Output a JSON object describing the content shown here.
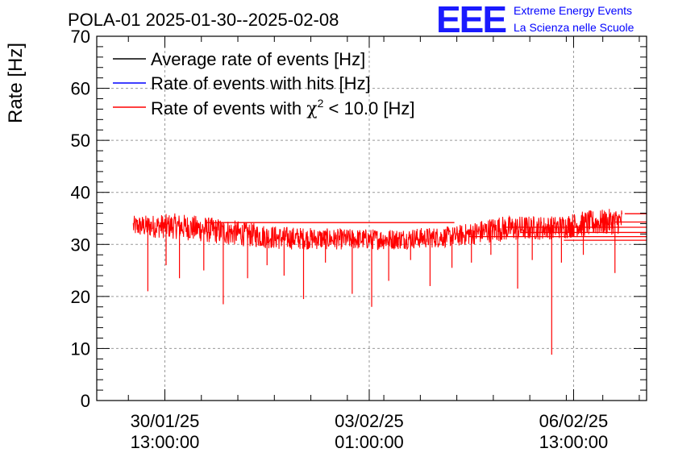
{
  "header": {
    "title": "POLA-01 2025-01-30--2025-02-08",
    "logo_text": "EEE",
    "org_line1": "Extreme Energy Events",
    "org_line2": "La Scienza nelle Scuole"
  },
  "colors": {
    "logo_blue": "#1a1aff",
    "org_text_blue": "#0000ff",
    "series_black": "#000000",
    "series_blue": "#0000ff",
    "series_red": "#ff0000",
    "grid": "#999999"
  },
  "chart_data": {
    "type": "line",
    "title": "POLA-01 2025-01-30--2025-02-08",
    "xlabel": "",
    "ylabel": "Rate [Hz]",
    "ylim": [
      0,
      70
    ],
    "yticks": [
      "0",
      "10",
      "20",
      "30",
      "40",
      "50",
      "60",
      "70"
    ],
    "xticks": [
      {
        "date": "2025-01-30T13:00:00",
        "line1": "30/01/25",
        "line2": "13:00:00"
      },
      {
        "date": "2025-02-03T01:00:00",
        "line1": "03/02/25",
        "line2": "01:00:00"
      },
      {
        "date": "2025-02-06T13:00:00",
        "line1": "06/02/25",
        "line2": "13:00:00"
      }
    ],
    "xlim": [
      "2025-01-29T09:00:00",
      "2025-02-07T19:00:00"
    ],
    "grid": true,
    "legend_position": "top-left",
    "legend": [
      {
        "label_main": "Average rate of events [Hz]",
        "color": "#000000"
      },
      {
        "label_main": "Rate of events with hits [Hz]",
        "color": "#0000ff"
      },
      {
        "label_main": "Rate of events with",
        "label_symbol": "χ",
        "label_sup": "2",
        "label_tail": "< 10.0 [Hz]",
        "color": "#ff0000"
      }
    ],
    "series": [
      {
        "name": "Rate of events with χ2 < 10.0 [Hz]",
        "color": "#ff0000",
        "band_envelope": {
          "x": [
            "2025-01-30T00:00:00",
            "2025-01-30T18:00:00",
            "2025-01-31T12:00:00",
            "2025-02-01T12:00:00",
            "2025-02-02T12:00:00",
            "2025-02-03T12:00:00",
            "2025-02-04T12:00:00",
            "2025-02-05T06:00:00",
            "2025-02-06T06:00:00",
            "2025-02-06T18:00:00",
            "2025-02-07T09:00:00"
          ],
          "low": [
            31.5,
            31.0,
            30.0,
            29.0,
            29.0,
            29.0,
            29.5,
            30.5,
            31.0,
            31.5,
            32.0
          ],
          "high": [
            35.5,
            36.0,
            35.0,
            33.5,
            33.0,
            33.0,
            33.5,
            35.5,
            35.5,
            36.5,
            37.0
          ]
        },
        "dips": [
          {
            "x": "2025-01-30T06:00:00",
            "y": 21.0
          },
          {
            "x": "2025-01-30T13:30:00",
            "y": 26.0
          },
          {
            "x": "2025-01-30T19:00:00",
            "y": 23.5
          },
          {
            "x": "2025-01-31T05:00:00",
            "y": 25.0
          },
          {
            "x": "2025-01-31T13:00:00",
            "y": 18.5
          },
          {
            "x": "2025-01-31T23:00:00",
            "y": 23.5
          },
          {
            "x": "2025-02-01T07:00:00",
            "y": 26.0
          },
          {
            "x": "2025-02-01T14:00:00",
            "y": 24.0
          },
          {
            "x": "2025-02-01T22:00:00",
            "y": 19.5
          },
          {
            "x": "2025-02-02T07:00:00",
            "y": 26.5
          },
          {
            "x": "2025-02-02T18:00:00",
            "y": 20.5
          },
          {
            "x": "2025-02-03T02:00:00",
            "y": 18.0
          },
          {
            "x": "2025-02-03T09:00:00",
            "y": 23.0
          },
          {
            "x": "2025-02-03T18:00:00",
            "y": 27.0
          },
          {
            "x": "2025-02-04T02:00:00",
            "y": 22.0
          },
          {
            "x": "2025-02-04T11:00:00",
            "y": 25.5
          },
          {
            "x": "2025-02-04T19:00:00",
            "y": 26.5
          },
          {
            "x": "2025-02-05T03:00:00",
            "y": 28.0
          },
          {
            "x": "2025-02-05T14:00:00",
            "y": 21.5
          },
          {
            "x": "2025-02-05T20:00:00",
            "y": 27.0
          },
          {
            "x": "2025-02-06T04:00:00",
            "y": 8.8
          },
          {
            "x": "2025-02-06T08:00:00",
            "y": 26.5
          },
          {
            "x": "2025-02-06T17:00:00",
            "y": 28.0
          },
          {
            "x": "2025-02-07T06:00:00",
            "y": 24.5
          }
        ],
        "horizontal_segments": [
          {
            "x0": "2025-01-31T06:00:00",
            "x1": "2025-02-04T12:00:00",
            "y": 34.2
          },
          {
            "x0": "2025-02-05T09:00:00",
            "x1": "2025-02-07T19:00:00",
            "y": 33.3
          },
          {
            "x0": "2025-02-05T15:00:00",
            "x1": "2025-02-07T19:00:00",
            "y": 32.3
          },
          {
            "x0": "2025-02-04T18:00:00",
            "x1": "2025-02-07T19:00:00",
            "y": 31.5
          },
          {
            "x0": "2025-02-06T09:00:00",
            "x1": "2025-02-07T19:00:00",
            "y": 30.8
          },
          {
            "x0": "2025-02-07T06:00:00",
            "x1": "2025-02-07T19:00:00",
            "y": 34.3
          },
          {
            "x0": "2025-02-07T10:00:00",
            "x1": "2025-02-07T19:00:00",
            "y": 35.9
          }
        ]
      }
    ]
  }
}
